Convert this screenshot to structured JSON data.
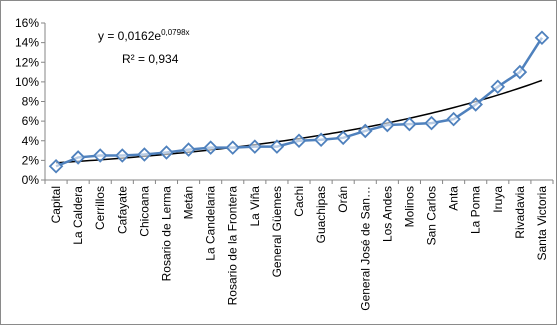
{
  "chart_data": {
    "type": "line",
    "categories": [
      "Capital",
      "La Caldera",
      "Cerrillos",
      "Cafayate",
      "Chicoana",
      "Rosario de Lerma",
      "Metán",
      "La Candelaria",
      "Rosario de la Frontera",
      "La Viña",
      "General Güemes",
      "Cachi",
      "Guachipas",
      "Orán",
      "General José de San…",
      "Los Andes",
      "Molinos",
      "San Carlos",
      "Anta",
      "La Poma",
      "Iruya",
      "Rivadavia",
      "Santa Victoria"
    ],
    "series": [
      {
        "values": [
          1.4,
          2.3,
          2.5,
          2.5,
          2.6,
          2.8,
          3.1,
          3.3,
          3.3,
          3.4,
          3.4,
          4.0,
          4.1,
          4.3,
          5.0,
          5.6,
          5.7,
          5.8,
          6.2,
          7.7,
          9.5,
          11.0,
          14.5
        ],
        "color": "#4f81bd",
        "marker": "diamond"
      }
    ],
    "trendline": {
      "type": "exponential",
      "a": 0.0162,
      "b": 0.0798,
      "color": "#000000"
    },
    "equation_label": {
      "prefix": "y = 0,0162e",
      "exponent": "0,0798x"
    },
    "r2_label": "R² = 0,934",
    "y_ticks": [
      "0%",
      "2%",
      "4%",
      "6%",
      "8%",
      "10%",
      "12%",
      "14%",
      "16%"
    ],
    "ylim": [
      0,
      16
    ],
    "y_unit": "percent",
    "grid": false,
    "legend": "none",
    "title": "",
    "xlabel": "",
    "ylabel": ""
  }
}
